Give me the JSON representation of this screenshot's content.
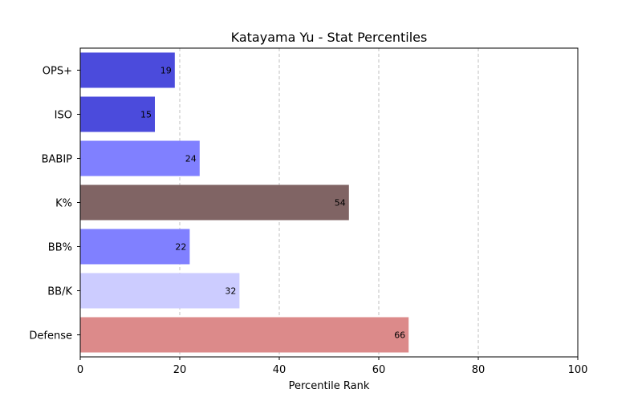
{
  "chart_data": {
    "type": "bar",
    "orientation": "horizontal",
    "title": "Katayama Yu - Stat Percentiles",
    "xlabel": "Percentile Rank",
    "ylabel": "",
    "xlim": [
      0,
      100
    ],
    "xticks": [
      0,
      20,
      40,
      60,
      80,
      100
    ],
    "grid": "x-dashed",
    "categories": [
      "OPS+",
      "ISO",
      "BABIP",
      "K%",
      "BB%",
      "BB/K",
      "Defense"
    ],
    "values": [
      19,
      15,
      24,
      54,
      22,
      32,
      66
    ],
    "colors": [
      "#4b4bdc",
      "#4b4bdc",
      "#8080ff",
      "#806464",
      "#8080ff",
      "#ccccff",
      "#dc8a8a"
    ]
  }
}
